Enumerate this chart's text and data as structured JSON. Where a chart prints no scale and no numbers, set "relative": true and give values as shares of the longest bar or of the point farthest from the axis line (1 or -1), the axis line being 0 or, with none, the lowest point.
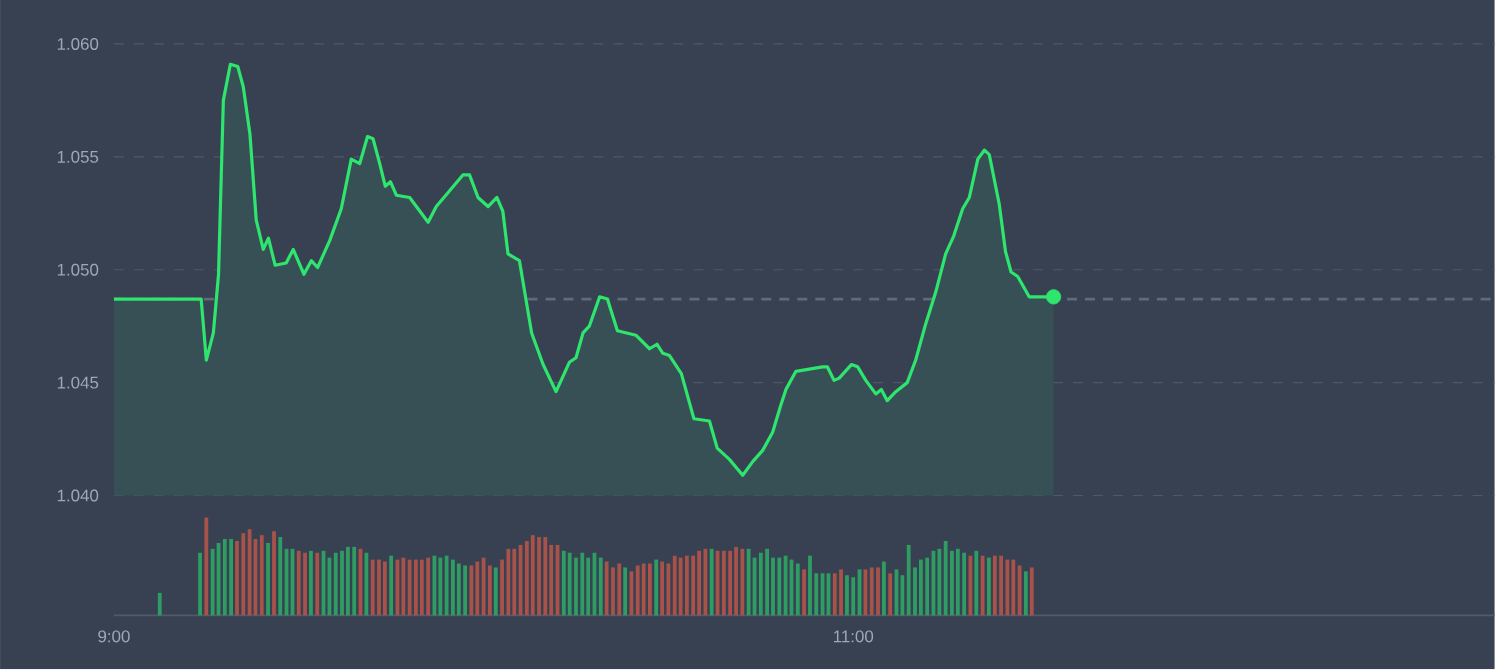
{
  "chart_data": [
    {
      "type": "area",
      "xlim": [
        9,
        12.735
      ],
      "ylim": [
        1.04,
        1.06
      ],
      "yticks": [
        {
          "value": 1.04,
          "label": "1.040"
        },
        {
          "value": 1.045,
          "label": "1.045"
        },
        {
          "value": 1.05,
          "label": "1.050"
        },
        {
          "value": 1.055,
          "label": "1.055"
        },
        {
          "value": 1.06,
          "label": "1.060"
        }
      ],
      "grid": "y",
      "tick_labels": "y",
      "ref_lines": [
        {
          "axis": "y",
          "value": 1.0487,
          "color": "#5f6a7a",
          "line_style": "dashed"
        }
      ],
      "series": [
        {
          "color": "#2ee56e",
          "x": [
            9.0,
            9.236,
            9.25,
            9.269,
            9.283,
            9.296,
            9.315,
            9.335,
            9.35,
            9.368,
            9.385,
            9.404,
            9.418,
            9.436,
            9.466,
            9.485,
            9.514,
            9.534,
            9.551,
            9.584,
            9.615,
            9.642,
            9.665,
            9.686,
            9.701,
            9.719,
            9.734,
            9.748,
            9.764,
            9.8,
            9.85,
            9.872,
            9.903,
            9.944,
            9.962,
            9.985,
            10.012,
            10.036,
            10.052,
            10.066,
            10.097,
            10.13,
            10.161,
            10.196,
            10.232,
            10.25,
            10.269,
            10.286,
            10.314,
            10.335,
            10.362,
            10.412,
            10.449,
            10.469,
            10.485,
            10.503,
            10.535,
            10.569,
            10.611,
            10.632,
            10.665,
            10.701,
            10.728,
            10.755,
            10.782,
            10.804,
            10.818,
            10.845,
            10.881,
            10.917,
            10.93,
            10.948,
            10.962,
            10.995,
            11.012,
            11.034,
            11.061,
            11.076,
            11.092,
            11.115,
            11.146,
            11.169,
            11.196,
            11.223,
            11.25,
            11.272,
            11.296,
            11.314,
            11.337,
            11.355,
            11.368,
            11.395,
            11.412,
            11.427,
            11.445,
            11.476,
            11.542
          ],
          "values": [
            1.0487,
            1.0487,
            1.046,
            1.0472,
            1.0498,
            1.0575,
            1.0591,
            1.059,
            1.0581,
            1.056,
            1.0522,
            1.0509,
            1.0514,
            1.0502,
            1.0503,
            1.0509,
            1.0498,
            1.0504,
            1.0501,
            1.0513,
            1.0527,
            1.0549,
            1.0547,
            1.0559,
            1.0558,
            1.0547,
            1.0537,
            1.0539,
            1.0533,
            1.0532,
            1.0521,
            1.0528,
            1.0534,
            1.0542,
            1.0542,
            1.0532,
            1.0528,
            1.0532,
            1.0526,
            1.0507,
            1.0504,
            1.0472,
            1.0458,
            1.0446,
            1.0459,
            1.0461,
            1.0472,
            1.0475,
            1.0488,
            1.0487,
            1.0473,
            1.0471,
            1.0465,
            1.0467,
            1.0463,
            1.0462,
            1.0454,
            1.0434,
            1.0433,
            1.0421,
            1.0416,
            1.0409,
            1.0415,
            1.042,
            1.0428,
            1.044,
            1.0447,
            1.0455,
            1.0456,
            1.0457,
            1.0457,
            1.0451,
            1.0452,
            1.0458,
            1.0457,
            1.0451,
            1.0445,
            1.0447,
            1.0442,
            1.0446,
            1.045,
            1.046,
            1.0476,
            1.049,
            1.0507,
            1.0515,
            1.0527,
            1.0532,
            1.0549,
            1.0553,
            1.0551,
            1.0529,
            1.0508,
            1.0499,
            1.0497,
            1.0488,
            1.0488
          ]
        },
        {
          "type": "scatter",
          "color": "#2ee56e",
          "x": [
            11.542
          ],
          "values": [
            1.0488
          ]
        }
      ]
    },
    {
      "type": "bar",
      "relative": true,
      "xlim": [
        9,
        12.735
      ],
      "xticks": [
        {
          "value": 9,
          "label": "9:00"
        },
        {
          "value": 11,
          "label": "11:00"
        }
      ],
      "tick_labels": "x",
      "x": [
        9.124,
        9.233,
        9.25,
        9.267,
        9.283,
        9.3,
        9.317,
        9.333,
        9.35,
        9.367,
        9.383,
        9.4,
        9.417,
        9.433,
        9.45,
        9.467,
        9.483,
        9.5,
        9.517,
        9.533,
        9.55,
        9.567,
        9.583,
        9.6,
        9.617,
        9.633,
        9.65,
        9.667,
        9.683,
        9.7,
        9.717,
        9.733,
        9.75,
        9.767,
        9.783,
        9.8,
        9.817,
        9.833,
        9.85,
        9.867,
        9.883,
        9.9,
        9.917,
        9.933,
        9.95,
        9.967,
        9.983,
        10.0,
        10.017,
        10.033,
        10.05,
        10.067,
        10.083,
        10.1,
        10.117,
        10.133,
        10.15,
        10.167,
        10.183,
        10.2,
        10.217,
        10.233,
        10.25,
        10.267,
        10.283,
        10.3,
        10.317,
        10.333,
        10.35,
        10.367,
        10.383,
        10.4,
        10.417,
        10.433,
        10.45,
        10.467,
        10.483,
        10.5,
        10.517,
        10.533,
        10.55,
        10.567,
        10.583,
        10.6,
        10.617,
        10.633,
        10.65,
        10.667,
        10.683,
        10.7,
        10.717,
        10.733,
        10.75,
        10.767,
        10.783,
        10.8,
        10.817,
        10.833,
        10.85,
        10.867,
        10.883,
        10.9,
        10.917,
        10.933,
        10.95,
        10.967,
        10.983,
        11.0,
        11.017,
        11.033,
        11.05,
        11.067,
        11.083,
        11.1,
        11.117,
        11.133,
        11.15,
        11.167,
        11.183,
        11.2,
        11.217,
        11.233,
        11.25,
        11.267,
        11.283,
        11.3,
        11.317,
        11.333,
        11.35,
        11.367,
        11.383,
        11.4,
        11.417,
        11.433,
        11.45,
        11.467,
        11.483
      ],
      "values": [
        0.23,
        0.64,
        1,
        0.68,
        0.74,
        0.78,
        0.78,
        0.76,
        0.84,
        0.88,
        0.78,
        0.82,
        0.74,
        0.86,
        0.8,
        0.68,
        0.68,
        0.66,
        0.64,
        0.66,
        0.64,
        0.66,
        0.59,
        0.64,
        0.66,
        0.7,
        0.7,
        0.68,
        0.64,
        0.57,
        0.57,
        0.55,
        0.61,
        0.57,
        0.59,
        0.57,
        0.57,
        0.57,
        0.59,
        0.61,
        0.59,
        0.61,
        0.57,
        0.53,
        0.51,
        0.51,
        0.55,
        0.59,
        0.51,
        0.49,
        0.57,
        0.68,
        0.68,
        0.72,
        0.76,
        0.82,
        0.8,
        0.8,
        0.72,
        0.72,
        0.66,
        0.64,
        0.59,
        0.64,
        0.59,
        0.64,
        0.59,
        0.55,
        0.49,
        0.53,
        0.49,
        0.45,
        0.51,
        0.53,
        0.53,
        0.57,
        0.55,
        0.53,
        0.61,
        0.59,
        0.61,
        0.61,
        0.66,
        0.68,
        0.68,
        0.66,
        0.66,
        0.66,
        0.7,
        0.68,
        0.68,
        0.59,
        0.64,
        0.68,
        0.59,
        0.59,
        0.61,
        0.57,
        0.53,
        0.47,
        0.61,
        0.43,
        0.43,
        0.43,
        0.43,
        0.47,
        0.41,
        0.39,
        0.47,
        0.47,
        0.49,
        0.49,
        0.55,
        0.43,
        0.47,
        0.41,
        0.72,
        0.49,
        0.57,
        0.59,
        0.66,
        0.68,
        0.76,
        0.66,
        0.68,
        0.64,
        0.61,
        0.66,
        0.61,
        0.59,
        0.61,
        0.61,
        0.57,
        0.57,
        0.51,
        0.45,
        0.49
      ],
      "colors": [
        "#2f9d63",
        "#2f9d63",
        "#a8524a",
        "#2f9d63",
        "#2f9d63",
        "#2f9d63",
        "#2f9d63",
        "#a8524a",
        "#a8524a",
        "#a8524a",
        "#a8524a",
        "#a8524a",
        "#2f9d63",
        "#a8524a",
        "#2f9d63",
        "#2f9d63",
        "#2f9d63",
        "#a8524a",
        "#a8524a",
        "#2f9d63",
        "#a8524a",
        "#2f9d63",
        "#2f9d63",
        "#2f9d63",
        "#2f9d63",
        "#2f9d63",
        "#2f9d63",
        "#a8524a",
        "#2f9d63",
        "#a8524a",
        "#a8524a",
        "#a8524a",
        "#2f9d63",
        "#a8524a",
        "#a8524a",
        "#a8524a",
        "#a8524a",
        "#a8524a",
        "#a8524a",
        "#2f9d63",
        "#2f9d63",
        "#2f9d63",
        "#2f9d63",
        "#2f9d63",
        "#2f9d63",
        "#a8524a",
        "#a8524a",
        "#a8524a",
        "#a8524a",
        "#2f9d63",
        "#a8524a",
        "#a8524a",
        "#a8524a",
        "#a8524a",
        "#a8524a",
        "#a8524a",
        "#a8524a",
        "#a8524a",
        "#a8524a",
        "#a8524a",
        "#2f9d63",
        "#2f9d63",
        "#2f9d63",
        "#2f9d63",
        "#2f9d63",
        "#2f9d63",
        "#2f9d63",
        "#a8524a",
        "#a8524a",
        "#a8524a",
        "#2f9d63",
        "#a8524a",
        "#a8524a",
        "#a8524a",
        "#a8524a",
        "#2f9d63",
        "#a8524a",
        "#a8524a",
        "#a8524a",
        "#a8524a",
        "#a8524a",
        "#a8524a",
        "#a8524a",
        "#a8524a",
        "#2f9d63",
        "#a8524a",
        "#a8524a",
        "#a8524a",
        "#a8524a",
        "#a8524a",
        "#2f9d63",
        "#2f9d63",
        "#2f9d63",
        "#2f9d63",
        "#2f9d63",
        "#2f9d63",
        "#2f9d63",
        "#2f9d63",
        "#2f9d63",
        "#a8524a",
        "#2f9d63",
        "#2f9d63",
        "#2f9d63",
        "#2f9d63",
        "#a8524a",
        "#a8524a",
        "#2f9d63",
        "#2f9d63",
        "#2f9d63",
        "#a8524a",
        "#a8524a",
        "#a8524a",
        "#2f9d63",
        "#a8524a",
        "#2f9d63",
        "#2f9d63",
        "#2f9d63",
        "#2f9d63",
        "#2f9d63",
        "#2f9d63",
        "#2f9d63",
        "#2f9d63",
        "#2f9d63",
        "#2f9d63",
        "#2f9d63",
        "#2f9d63",
        "#a8524a",
        "#2f9d63",
        "#a8524a",
        "#2f9d63",
        "#a8524a",
        "#a8524a",
        "#a8524a",
        "#a8524a",
        "#a8524a",
        "#2f9d63",
        "#a8524a"
      ]
    }
  ]
}
